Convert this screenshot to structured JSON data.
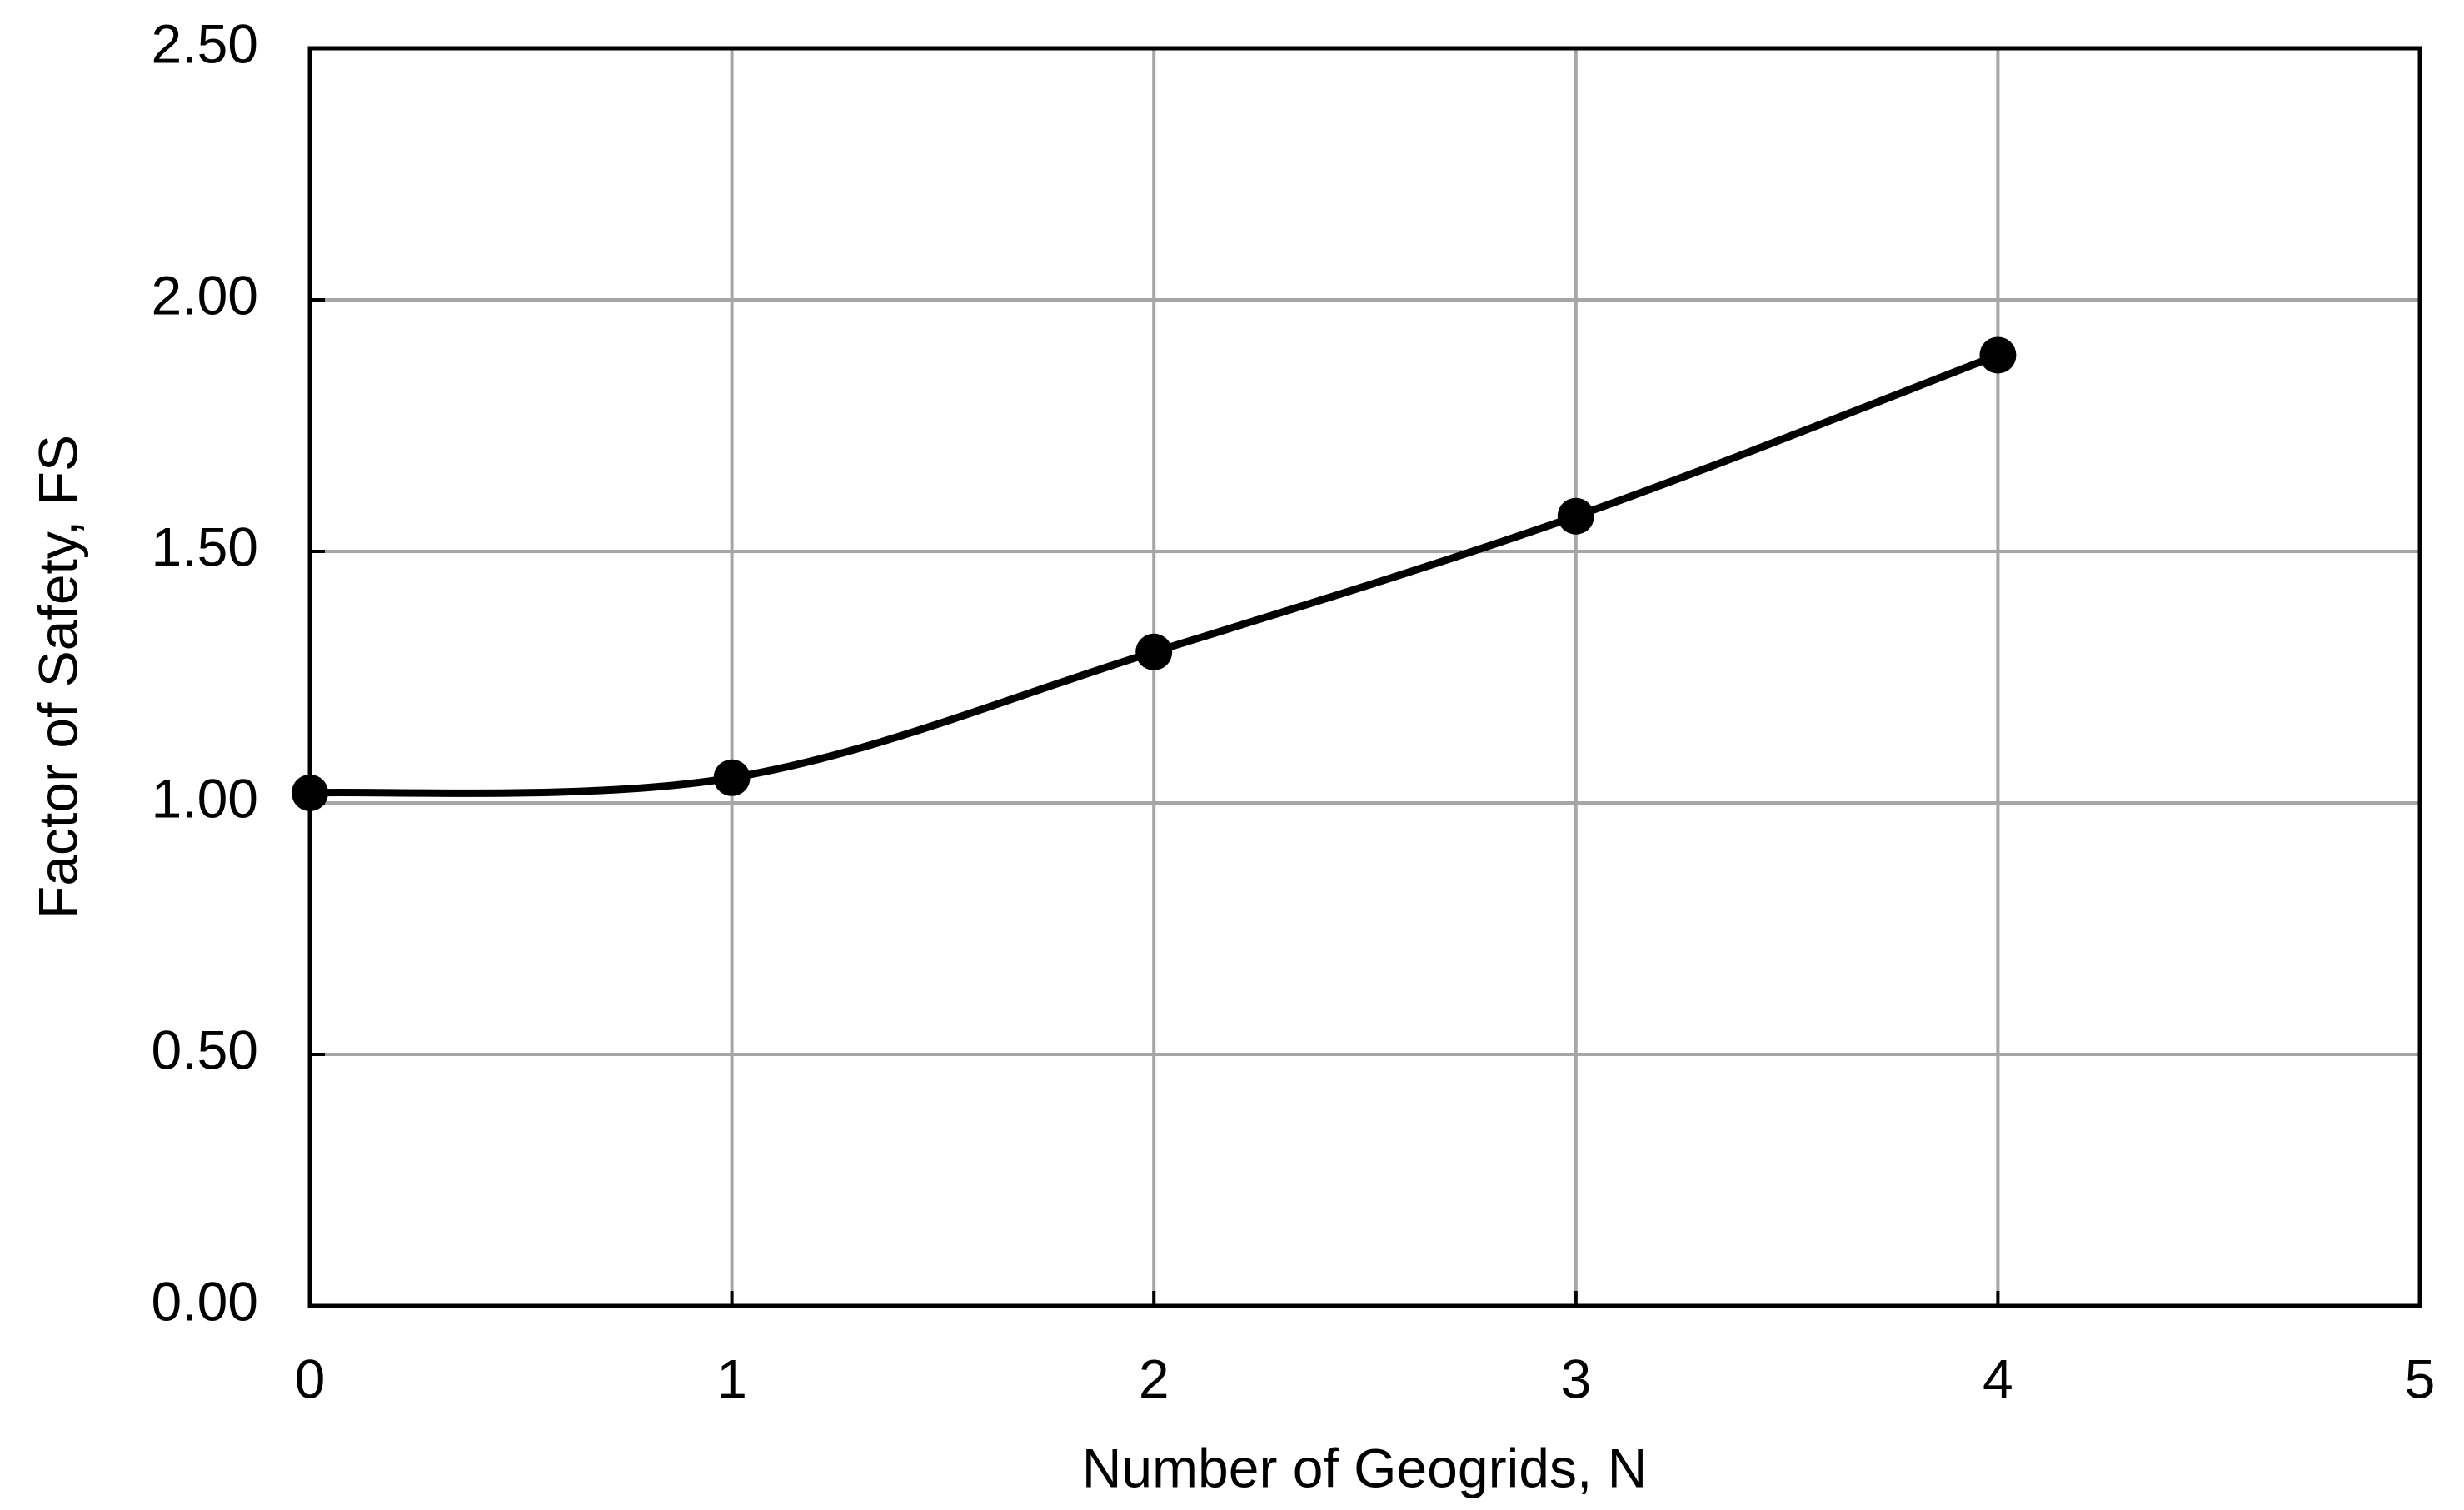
{
  "chart_data": {
    "type": "line",
    "x_label": "Number of Geogrids, N",
    "y_label": "Factor of Safety, FS",
    "x": [
      0,
      1,
      2,
      3,
      4
    ],
    "series": [
      {
        "color": "#000000",
        "values": [
          1.02,
          1.05,
          1.3,
          1.57,
          1.89
        ]
      }
    ],
    "xlim": [
      0,
      5
    ],
    "xticks": [
      0,
      1,
      2,
      3,
      4,
      5
    ],
    "ylim": [
      0,
      2.5
    ],
    "yticks": [
      {
        "value": 0,
        "label": "0.00"
      },
      {
        "value": 0.5,
        "label": "0.50"
      },
      {
        "value": 1,
        "label": "1.00"
      },
      {
        "value": 1.5,
        "label": "1.50"
      },
      {
        "value": 2,
        "label": "2.00"
      },
      {
        "value": 2.5,
        "label": "2.50"
      }
    ],
    "grid": true
  }
}
